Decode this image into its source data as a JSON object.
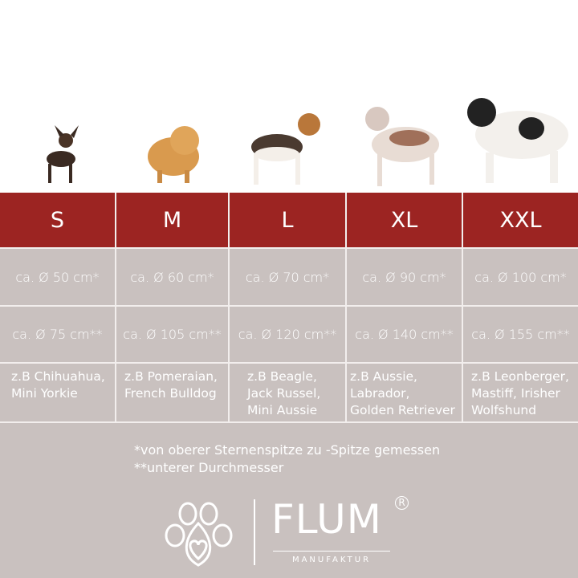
{
  "sizes": [
    {
      "label": "S",
      "outer": "ca. Ø 50 cm*",
      "inner": "ca. Ø 75 cm**",
      "breeds": [
        "z.B Chihuahua,",
        "Mini Yorkie"
      ]
    },
    {
      "label": "M",
      "outer": "ca. Ø 60 cm*",
      "inner": "ca. Ø 105 cm**",
      "breeds": [
        "z.B Pomeraian,",
        "French Bulldog"
      ]
    },
    {
      "label": "L",
      "outer": "ca. Ø 70 cm*",
      "inner": "ca. Ø 120 cm**",
      "breeds": [
        "z.B Beagle,",
        "Jack Russel,",
        "Mini Aussie"
      ]
    },
    {
      "label": "XL",
      "outer": "ca. Ø 90 cm*",
      "inner": "ca. Ø 140 cm**",
      "breeds": [
        "z.B Aussie,",
        "Labrador,",
        "Golden Retriever"
      ]
    },
    {
      "label": "XXL",
      "outer": "ca. Ø 100 cm*",
      "inner": "ca. Ø 155 cm**",
      "breeds": [
        "z.B Leonberger,",
        "Mastiff, Irisher",
        "Wolfshund"
      ]
    }
  ],
  "notes": [
    "*von oberer Sternenspitze zu -Spitze gemessen",
    "**unterer Durchmesser"
  ],
  "logo": {
    "brand": "FLUM",
    "registered": "R",
    "subtitle": "MANUFAKTUR"
  },
  "colors": {
    "header": "#9c2422",
    "cell": "#c9c1bf",
    "text": "#ffffff"
  }
}
